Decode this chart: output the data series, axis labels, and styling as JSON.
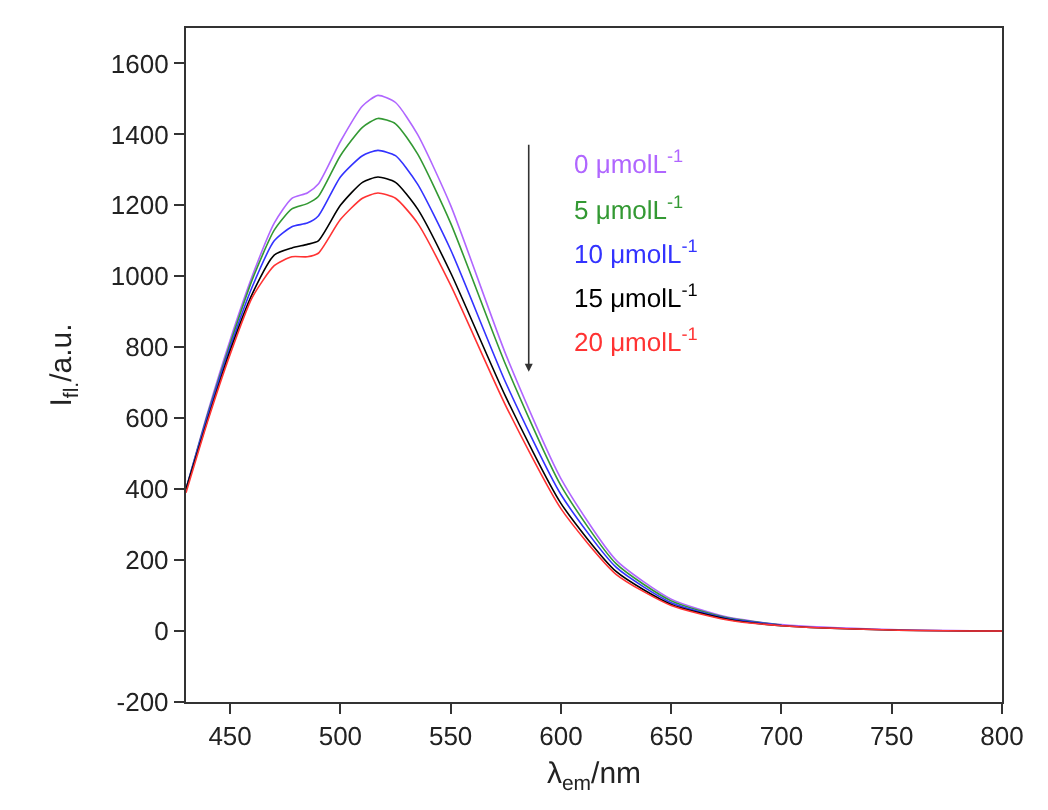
{
  "chart_data": {
    "type": "line",
    "xlabel": "λ$_{em}$/nm",
    "ylabel": "I$_{fl.}$/a.u.",
    "x": [
      430,
      440,
      450,
      460,
      470,
      478,
      485,
      490,
      500,
      510,
      517,
      525,
      535,
      550,
      575,
      600,
      625,
      650,
      675,
      700,
      750,
      800
    ],
    "series": [
      {
        "name": "0 μmolL$^{-1}$",
        "color": "#b066ff",
        "values": [
          400,
          620,
          820,
          1000,
          1150,
          1220,
          1235,
          1260,
          1380,
          1480,
          1510,
          1490,
          1400,
          1200,
          780,
          430,
          200,
          90,
          40,
          18,
          4,
          0
        ]
      },
      {
        "name": "5 μmolL$^{-1}$",
        "color": "#339933",
        "values": [
          400,
          615,
          810,
          990,
          1130,
          1190,
          1205,
          1225,
          1340,
          1420,
          1445,
          1430,
          1345,
          1150,
          750,
          410,
          190,
          85,
          38,
          17,
          null,
          null
        ]
      },
      {
        "name": "10 μmolL$^{-1}$",
        "color": "#3333ff",
        "values": [
          400,
          610,
          800,
          970,
          1100,
          1140,
          1150,
          1170,
          1280,
          1340,
          1355,
          1340,
          1260,
          1075,
          700,
          385,
          180,
          80,
          36,
          16,
          null,
          null
        ]
      },
      {
        "name": "15 μmolL$^{-1}$",
        "color": "#000000",
        "values": [
          400,
          600,
          790,
          950,
          1060,
          1080,
          1090,
          1100,
          1200,
          1265,
          1280,
          1265,
          1190,
          1010,
          660,
          360,
          168,
          75,
          34,
          15,
          3,
          0
        ]
      },
      {
        "name": "20 μmolL$^{-1}$",
        "color": "#ff3333",
        "values": [
          390,
          595,
          780,
          940,
          1030,
          1055,
          1055,
          1065,
          1160,
          1220,
          1235,
          1220,
          1150,
          975,
          635,
          345,
          160,
          72,
          32,
          15,
          3,
          0
        ]
      }
    ],
    "xlim": [
      430,
      800
    ],
    "xticks": [
      450,
      500,
      550,
      600,
      650,
      700,
      750,
      800
    ],
    "ylim": [
      -200,
      1700
    ],
    "yticks": [
      -200,
      0,
      200,
      400,
      600,
      800,
      1000,
      1200,
      1400,
      1600
    ],
    "legend": "top right",
    "marker": "none",
    "line_style": "solid"
  }
}
